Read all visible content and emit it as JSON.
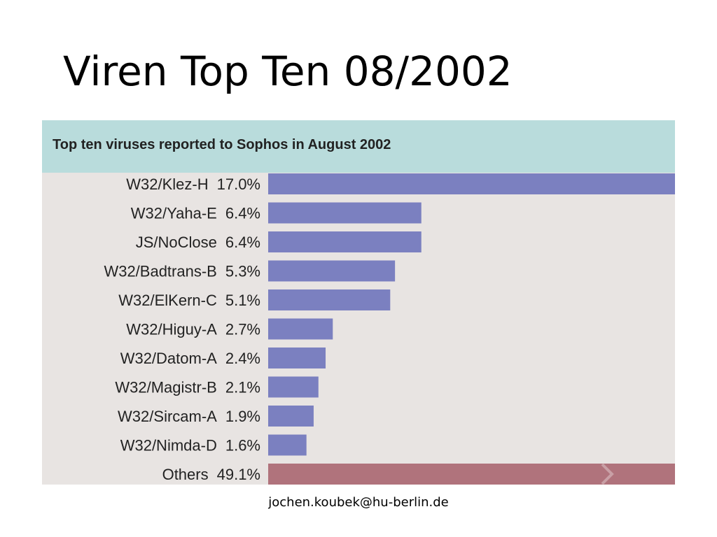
{
  "title": "Viren Top Ten 08/2002",
  "footer": "jochen.koubek@hu-berlin.de",
  "chart_data": {
    "type": "bar",
    "orientation": "horizontal",
    "title": "Top ten viruses reported to Sophos in August 2002",
    "categories": [
      "W32/Klez-H",
      "W32/Yaha-E",
      "JS/NoClose",
      "W32/Badtrans-B",
      "W32/ElKern-C",
      "W32/Higuy-A",
      "W32/Datom-A",
      "W32/Magistr-B",
      "W32/Sircam-A",
      "W32/Nimda-D",
      "Others"
    ],
    "values": [
      17.0,
      6.4,
      6.4,
      5.3,
      5.1,
      2.7,
      2.4,
      2.1,
      1.9,
      1.6,
      49.1
    ],
    "value_labels": [
      "17.0%",
      "6.4%",
      "6.4%",
      "5.3%",
      "5.1%",
      "2.7%",
      "2.4%",
      "2.1%",
      "1.9%",
      "1.6%",
      "49.1%"
    ],
    "colors": [
      "#7b80c0",
      "#7b80c0",
      "#7b80c0",
      "#7b80c0",
      "#7b80c0",
      "#7b80c0",
      "#7b80c0",
      "#7b80c0",
      "#7b80c0",
      "#7b80c0",
      "#b0737c"
    ]
  }
}
